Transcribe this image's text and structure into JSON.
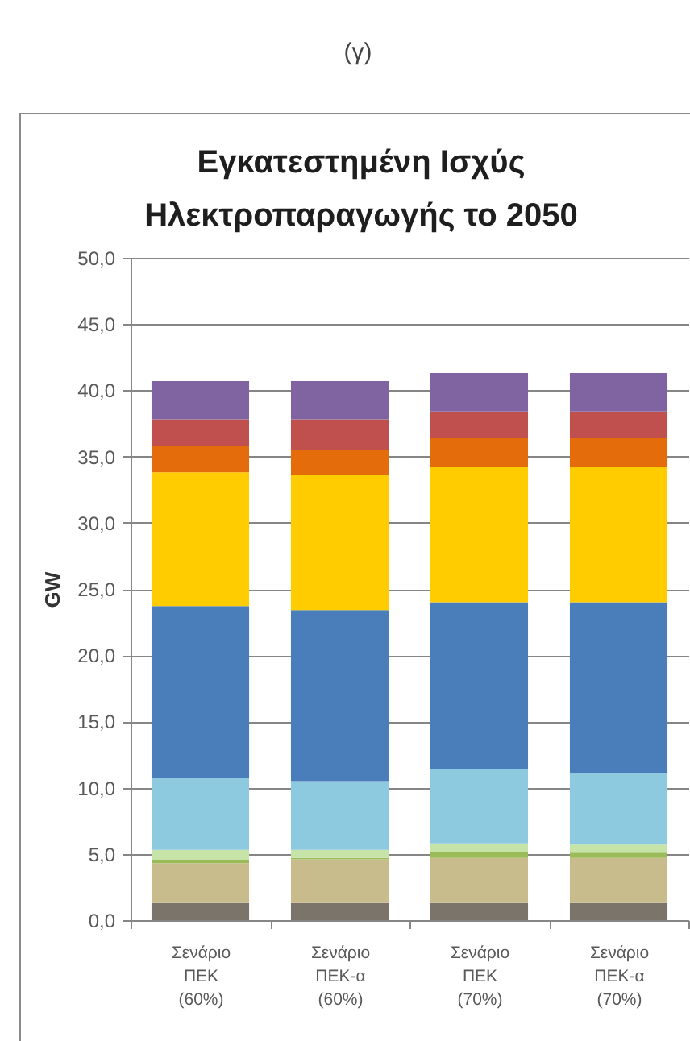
{
  "chart_data": {
    "type": "bar",
    "title": "Εγκατεστημένη Ισχύς Ηλεκτροπαραγωγής το 2050",
    "ylabel": "GW",
    "annotations": [
      "(γ)"
    ],
    "categories": [
      "Σενάριο ΠΕΚ (60%)",
      "Σενάριο ΠΕΚ-α (60%)",
      "Σενάριο ΠΕΚ (70%)",
      "Σενάριο ΠΕΚ-α (70%)"
    ],
    "stacked": true,
    "ylim": [
      0,
      50
    ],
    "yticks": [
      {
        "value": 0,
        "label": "0,0"
      },
      {
        "value": 5,
        "label": "5,0"
      },
      {
        "value": 10,
        "label": "10,0"
      },
      {
        "value": 15,
        "label": "15,0"
      },
      {
        "value": 20,
        "label": "20,0"
      },
      {
        "value": 25,
        "label": "25,0"
      },
      {
        "value": 30,
        "label": "30,0"
      },
      {
        "value": 35,
        "label": "35,0"
      },
      {
        "value": 40,
        "label": "40,0"
      },
      {
        "value": 45,
        "label": "45,0"
      },
      {
        "value": 50,
        "label": "50,0"
      }
    ],
    "grid": "y",
    "series": [
      {
        "color": "#7a746a",
        "values": [
          1.3,
          1.3,
          1.3,
          1.3
        ]
      },
      {
        "color": "#c8bb8c",
        "values": [
          3.0,
          3.3,
          3.4,
          3.4
        ]
      },
      {
        "color": "#9bbb59",
        "values": [
          0.3,
          0.1,
          0.5,
          0.4
        ]
      },
      {
        "color": "#c6e3a8",
        "values": [
          0.7,
          0.6,
          0.6,
          0.6
        ]
      },
      {
        "color": "#8dc9df",
        "values": [
          5.4,
          5.2,
          5.6,
          5.4
        ]
      },
      {
        "color": "#4a7ebb",
        "values": [
          13.0,
          12.9,
          12.6,
          12.9
        ]
      },
      {
        "color": "#ffcc00",
        "values": [
          10.1,
          10.2,
          10.2,
          10.2
        ]
      },
      {
        "color": "#e46c0a",
        "values": [
          2.0,
          1.9,
          2.2,
          2.2
        ]
      },
      {
        "color": "#c0504d",
        "values": [
          2.0,
          2.3,
          2.0,
          2.0
        ]
      },
      {
        "color": "#8064a2",
        "values": [
          2.9,
          2.9,
          2.9,
          2.9
        ]
      }
    ]
  }
}
